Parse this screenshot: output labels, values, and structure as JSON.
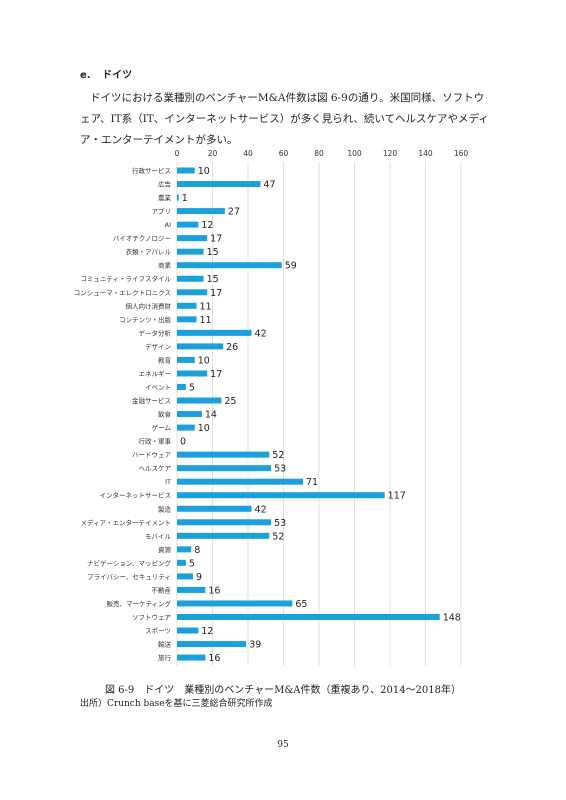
{
  "section": {
    "number": "e.",
    "title": "ドイツ"
  },
  "paragraph": "ドイツにおける業種別のベンチャーM&A件数は図 6-9の通り。米国同様、ソフトウェア、IT系（IT、インターネットサービス）が多く見られ、続いてヘルスケアやメディア・エンターテイメントが多い。",
  "figure": {
    "caption": "図 6-9　ドイツ　業種別のベンチャーM&A件数（重複あり、2014～2018年）",
    "source": "出所）Crunch baseを基に三菱総合研究所作成"
  },
  "page_number": "95",
  "chart_data": {
    "type": "bar",
    "orientation": "horizontal",
    "bar_color": "#1BA0DD",
    "xlim": [
      0,
      160
    ],
    "xticks": [
      0,
      20,
      40,
      60,
      80,
      100,
      120,
      140,
      160
    ],
    "xtick_position": "top",
    "grid": true,
    "legend": "none",
    "categories": [
      "行政サービス",
      "広告",
      "農業",
      "アプリ",
      "AI",
      "バイオテクノロジー",
      "衣類・アパレル",
      "商業",
      "コミュニティ・ライフスタイル",
      "コンシューマ・エレクトロニクス",
      "個人向け消費財",
      "コンテンツ・出版",
      "データ分析",
      "デザイン",
      "教育",
      "エネルギー",
      "イベント",
      "金融サービス",
      "飲食",
      "ゲーム",
      "行政・軍事",
      "ハードウェア",
      "ヘルスケア",
      "IT",
      "インターネットサービス",
      "製造",
      "メディア・エンターテイメント",
      "モバイル",
      "資源",
      "ナビゲーション、マッピング",
      "プライバシー、セキュリティ",
      "不動産",
      "販売、マーケティング",
      "ソフトウェア",
      "スポーツ",
      "輸送",
      "旅行"
    ],
    "values": [
      10,
      47,
      1,
      27,
      12,
      17,
      15,
      59,
      15,
      17,
      11,
      11,
      42,
      26,
      10,
      17,
      5,
      25,
      14,
      10,
      0,
      52,
      53,
      71,
      117,
      42,
      53,
      52,
      8,
      5,
      9,
      16,
      65,
      148,
      12,
      39,
      16
    ]
  }
}
